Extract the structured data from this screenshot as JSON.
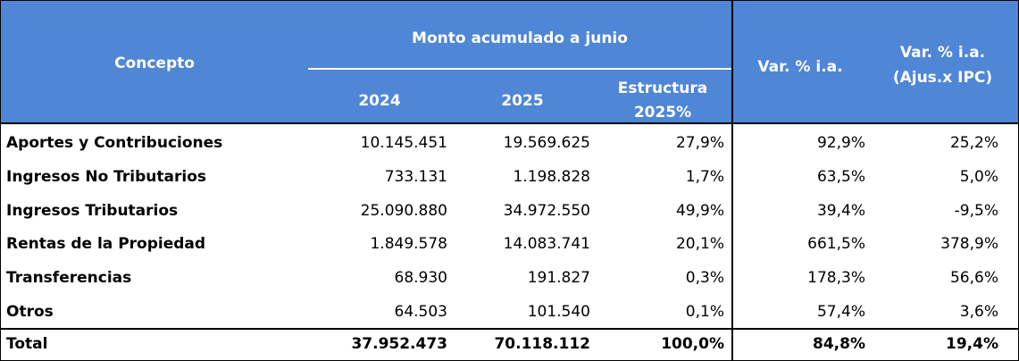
{
  "header": {
    "concepto": "Concepto",
    "group": "Monto acumulado a junio",
    "col_2024": "2024",
    "col_2025": "2025",
    "estructura_l1": "Estructura",
    "estructura_l2": "2025%",
    "var": "Var. % i.a.",
    "var_ipc_l1": "Var. % i.a.",
    "var_ipc_l2": "(Ajus.x IPC)"
  },
  "rows": [
    {
      "label": "Aportes y Contribuciones",
      "v2024": "10.145.451",
      "v2025": "19.569.625",
      "est": "27,9%",
      "var": "92,9%",
      "var_ipc": "25,2%"
    },
    {
      "label": "Ingresos No Tributarios",
      "v2024": "733.131",
      "v2025": "1.198.828",
      "est": "1,7%",
      "var": "63,5%",
      "var_ipc": "5,0%"
    },
    {
      "label": "Ingresos Tributarios",
      "v2024": "25.090.880",
      "v2025": "34.972.550",
      "est": "49,9%",
      "var": "39,4%",
      "var_ipc": "-9,5%"
    },
    {
      "label": "Rentas de la Propiedad",
      "v2024": "1.849.578",
      "v2025": "14.083.741",
      "est": "20,1%",
      "var": "661,5%",
      "var_ipc": "378,9%"
    },
    {
      "label": "Transferencias",
      "v2024": "68.930",
      "v2025": "191.827",
      "est": "0,3%",
      "var": "178,3%",
      "var_ipc": "56,6%"
    },
    {
      "label": "Otros",
      "v2024": "64.503",
      "v2025": "101.540",
      "est": "0,1%",
      "var": "57,4%",
      "var_ipc": "3,6%"
    }
  ],
  "total": {
    "label": "Total",
    "v2024": "37.952.473",
    "v2025": "70.118.112",
    "est": "100,0%",
    "var": "84,8%",
    "var_ipc": "19,4%"
  }
}
